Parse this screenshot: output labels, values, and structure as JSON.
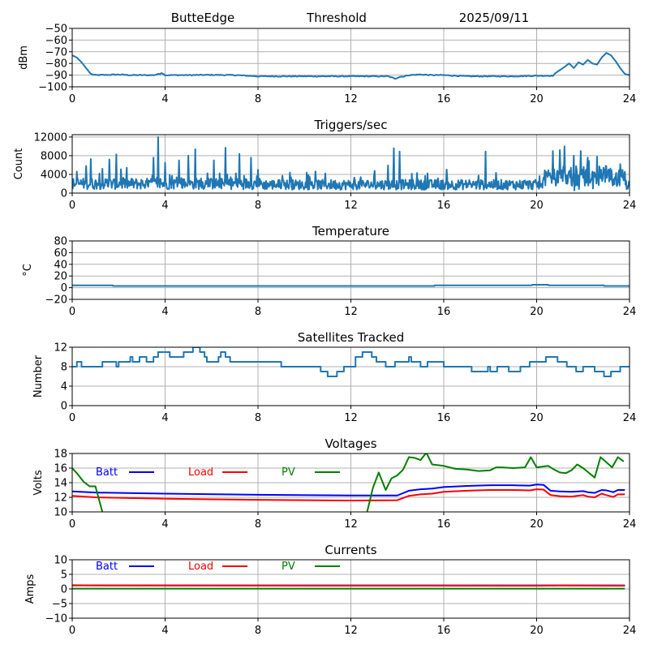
{
  "header": {
    "station": "ButteEdge",
    "label": "Threshold",
    "date": "2025/09/11"
  },
  "colors": {
    "series_default": "#1f77b4",
    "batt": "#0000ff",
    "load": "#ff0000",
    "pv": "#008000",
    "grid": "#b0b0b0"
  },
  "chart_data": [
    {
      "id": "threshold",
      "type": "line",
      "title": "",
      "xlabel": "",
      "ylabel": "dBm",
      "xlim": [
        0,
        24
      ],
      "ylim": [
        -100,
        -50
      ],
      "xticks": [
        0,
        4,
        8,
        12,
        16,
        20,
        24
      ],
      "yticks": [
        -50,
        -60,
        -70,
        -80,
        -90,
        -100
      ],
      "ytick_labels": [
        "−50",
        "−60",
        "−70",
        "−80",
        "−90",
        "−100"
      ],
      "grid": true,
      "series": [
        {
          "name": "threshold",
          "color": "#1f77b4",
          "x": [
            0,
            0.2,
            0.4,
            0.6,
            0.8,
            1.0,
            1.5,
            2.0,
            2.5,
            3.0,
            3.5,
            3.75,
            3.85,
            4.0,
            5,
            6,
            7,
            7.5,
            8,
            9,
            10,
            11,
            12,
            13,
            13.6,
            13.9,
            14.1,
            14.3,
            14.5,
            15,
            15.5,
            16,
            16.5,
            17,
            18,
            19,
            20,
            20.7,
            20.9,
            21.2,
            21.4,
            21.6,
            21.8,
            22.0,
            22.2,
            22.4,
            22.6,
            22.8,
            23.0,
            23.2,
            23.4,
            23.6,
            23.8,
            24
          ],
          "y": [
            -73,
            -75,
            -79,
            -84,
            -89,
            -90,
            -89.8,
            -89.5,
            -90,
            -90,
            -90,
            -89,
            -88,
            -90,
            -90,
            -89.8,
            -90,
            -90.5,
            -91,
            -91,
            -91,
            -91,
            -91,
            -91,
            -91,
            -93,
            -91.5,
            -91,
            -90,
            -89.5,
            -90,
            -90,
            -90.5,
            -91,
            -91,
            -91,
            -90.5,
            -90.5,
            -87,
            -83,
            -80,
            -84,
            -79,
            -81,
            -77,
            -80,
            -81,
            -75,
            -71,
            -73,
            -78,
            -84,
            -89,
            -90
          ]
        }
      ]
    },
    {
      "id": "triggers",
      "type": "line",
      "title": "Triggers/sec",
      "xlabel": "",
      "ylabel": "Count",
      "xlim": [
        0,
        24
      ],
      "ylim": [
        0,
        12500
      ],
      "xticks": [
        0,
        4,
        8,
        12,
        16,
        20,
        24
      ],
      "yticks": [
        0,
        4000,
        8000,
        12000
      ],
      "ytick_labels": [
        "0",
        "4000",
        "8000",
        "12000"
      ],
      "grid": true,
      "series": [
        {
          "name": "triggers",
          "color": "#1f77b4",
          "peaks": [
            [
              0.2,
              4600
            ],
            [
              0.6,
              5800
            ],
            [
              0.8,
              7300
            ],
            [
              1.3,
              5200
            ],
            [
              1.6,
              7200
            ],
            [
              1.9,
              8300
            ],
            [
              2.1,
              5100
            ],
            [
              3.5,
              7600
            ],
            [
              3.7,
              12000
            ],
            [
              4.0,
              6500
            ],
            [
              4.6,
              7000
            ],
            [
              5.0,
              8000
            ],
            [
              5.3,
              9400
            ],
            [
              6.1,
              7000
            ],
            [
              6.6,
              9700
            ],
            [
              7.2,
              8400
            ],
            [
              7.7,
              7600
            ],
            [
              8.0,
              5000
            ],
            [
              10.9,
              4200
            ],
            [
              13.0,
              3800
            ],
            [
              13.6,
              5900
            ],
            [
              13.85,
              9600
            ],
            [
              14.1,
              8900
            ],
            [
              15.3,
              4200
            ],
            [
              17.8,
              8900
            ],
            [
              20.7,
              9000
            ],
            [
              21.0,
              9200
            ],
            [
              21.2,
              10000
            ],
            [
              21.6,
              8000
            ],
            [
              21.9,
              9000
            ],
            [
              22.2,
              7600
            ],
            [
              22.6,
              7800
            ],
            [
              23.0,
              5800
            ],
            [
              23.6,
              6200
            ]
          ],
          "baseline_mean": 1800
        }
      ]
    },
    {
      "id": "temperature",
      "type": "line",
      "title": "Temperature",
      "xlabel": "",
      "ylabel": "°C",
      "xlim": [
        0,
        24
      ],
      "ylim": [
        -20,
        80
      ],
      "xticks": [
        0,
        4,
        8,
        12,
        16,
        20,
        24
      ],
      "yticks": [
        80,
        60,
        40,
        20,
        0,
        -20
      ],
      "ytick_labels": [
        "80",
        "60",
        "40",
        "20",
        "0",
        "−20"
      ],
      "grid": true,
      "series": [
        {
          "name": "temperature",
          "color": "#1f77b4",
          "x": [
            0,
            1.75,
            1.76,
            15.6,
            15.61,
            19.8,
            19.81,
            20.5,
            20.51,
            22.9,
            22.91,
            24
          ],
          "y": [
            4,
            4,
            3,
            3,
            4,
            4,
            5,
            5,
            4,
            4,
            3,
            3
          ]
        }
      ]
    },
    {
      "id": "satellites",
      "type": "line",
      "title": "Satellites Tracked",
      "xlabel": "",
      "ylabel": "Number",
      "xlim": [
        0,
        24
      ],
      "ylim": [
        0,
        12
      ],
      "xticks": [
        0,
        4,
        8,
        12,
        16,
        20,
        24
      ],
      "yticks": [
        0,
        4,
        8,
        12
      ],
      "ytick_labels": [
        "0",
        "4",
        "8",
        "12"
      ],
      "grid": true,
      "series": [
        {
          "name": "satellites",
          "color": "#1f77b4",
          "step": true,
          "x": [
            0,
            0.2,
            0.4,
            1.3,
            1.9,
            2.0,
            2.5,
            2.6,
            2.9,
            3.2,
            3.5,
            3.7,
            4.2,
            4.8,
            5.2,
            5.5,
            5.7,
            5.8,
            6.3,
            6.4,
            6.6,
            6.8,
            6.9,
            8.0,
            9.0,
            9.3,
            10.0,
            10.7,
            11.0,
            11.4,
            11.7,
            12.2,
            12.5,
            12.9,
            13.1,
            13.5,
            13.9,
            14.2,
            14.5,
            14.6,
            15.0,
            15.3,
            16.0,
            16.8,
            17.2,
            17.9,
            18.0,
            18.3,
            18.8,
            19.3,
            19.7,
            20.4,
            20.9,
            21.3,
            21.7,
            22.0,
            22.5,
            22.9,
            23.2,
            23.6,
            24
          ],
          "y": [
            8,
            9,
            8,
            9,
            8,
            9,
            10,
            9,
            10,
            9,
            10,
            11,
            10,
            11,
            12,
            11,
            10,
            9,
            10,
            11,
            10,
            9,
            9,
            9,
            8,
            8,
            8,
            7,
            6,
            7,
            8,
            10,
            11,
            10,
            9,
            8,
            9,
            9,
            10,
            9,
            8,
            9,
            8,
            8,
            7,
            8,
            7,
            8,
            7,
            8,
            9,
            10,
            9,
            8,
            7,
            8,
            7,
            6,
            7,
            8,
            8
          ]
        }
      ]
    },
    {
      "id": "voltages",
      "type": "line",
      "title": "Voltages",
      "xlabel": "",
      "ylabel": "Volts",
      "xlim": [
        0,
        24
      ],
      "ylim": [
        10,
        18
      ],
      "xticks": [
        0,
        4,
        8,
        12,
        16,
        20,
        24
      ],
      "yticks": [
        10,
        12,
        14,
        16,
        18
      ],
      "ytick_labels": [
        "10",
        "12",
        "14",
        "16",
        "18"
      ],
      "grid": true,
      "legend": {
        "placement": "top-left-inline",
        "entries": [
          {
            "label": "Batt",
            "color": "#0000ff"
          },
          {
            "label": "Load",
            "color": "#ff0000"
          },
          {
            "label": "PV",
            "color": "#008000"
          }
        ]
      },
      "series": [
        {
          "name": "Batt",
          "color": "#0000ff",
          "x": [
            0,
            1,
            4,
            8,
            12,
            14.0,
            14.5,
            15.0,
            15.5,
            16,
            17,
            18,
            19,
            19.7,
            20,
            20.3,
            20.6,
            21,
            21.5,
            22,
            22.2,
            22.5,
            22.8,
            23,
            23.3,
            23.5,
            23.8
          ],
          "y": [
            12.8,
            12.65,
            12.5,
            12.35,
            12.25,
            12.25,
            12.9,
            13.1,
            13.2,
            13.4,
            13.55,
            13.65,
            13.65,
            13.6,
            13.75,
            13.7,
            12.9,
            12.8,
            12.75,
            12.85,
            12.7,
            12.6,
            13.0,
            12.95,
            12.7,
            13.0,
            13.0
          ]
        },
        {
          "name": "Load",
          "color": "#ff0000",
          "x": [
            0,
            1,
            4,
            8,
            12,
            14.0,
            14.5,
            15.0,
            15.5,
            16,
            17,
            18,
            19,
            19.7,
            20,
            20.3,
            20.6,
            21,
            21.5,
            22,
            22.2,
            22.5,
            22.8,
            23,
            23.3,
            23.5,
            23.8
          ],
          "y": [
            12.2,
            12.0,
            11.8,
            11.65,
            11.55,
            11.6,
            12.2,
            12.4,
            12.5,
            12.75,
            12.9,
            13.0,
            13.0,
            12.95,
            13.1,
            13.05,
            12.3,
            12.15,
            12.1,
            12.3,
            12.1,
            12.0,
            12.5,
            12.3,
            12.05,
            12.4,
            12.4
          ]
        },
        {
          "name": "PV",
          "color": "#008000",
          "x": [
            0,
            0.2,
            0.5,
            0.75,
            1.0,
            1.3,
            1.6,
            12.5,
            12.7,
            12.95,
            13.2,
            13.5,
            13.75,
            14.0,
            14.25,
            14.5,
            14.75,
            15.0,
            15.25,
            15.5,
            16,
            16.5,
            17,
            17.5,
            18,
            18.25,
            18.5,
            19,
            19.5,
            19.75,
            20,
            20.5,
            20.75,
            21,
            21.25,
            21.5,
            21.75,
            22,
            22.5,
            22.75,
            23.0,
            23.25,
            23.5,
            23.75
          ],
          "y": [
            16,
            15.3,
            14.1,
            13.5,
            13.5,
            10.0,
            7.0,
            7.0,
            10.0,
            13.3,
            15.4,
            13.0,
            14.6,
            15.0,
            15.8,
            17.5,
            17.4,
            17.1,
            18.1,
            16.5,
            16.3,
            15.9,
            15.8,
            15.6,
            15.7,
            16.1,
            16.1,
            16.0,
            16.1,
            17.5,
            16.1,
            16.3,
            15.8,
            15.4,
            15.3,
            15.7,
            16.5,
            16.0,
            14.7,
            17.5,
            16.8,
            16.1,
            17.5,
            16.9
          ]
        }
      ]
    },
    {
      "id": "currents",
      "type": "line",
      "title": "Currents",
      "xlabel": "",
      "ylabel": "Amps",
      "xlim": [
        0,
        24
      ],
      "ylim": [
        -10,
        10
      ],
      "xticks": [
        0,
        4,
        8,
        12,
        16,
        20,
        24
      ],
      "yticks": [
        10,
        5,
        0,
        -5,
        -10
      ],
      "ytick_labels": [
        "10",
        "5",
        "0",
        "−5",
        "−10"
      ],
      "grid": true,
      "legend": {
        "placement": "top-left-inline",
        "entries": [
          {
            "label": "Batt",
            "color": "#0000ff"
          },
          {
            "label": "Load",
            "color": "#ff0000"
          },
          {
            "label": "PV",
            "color": "#008000"
          }
        ]
      },
      "series": [
        {
          "name": "Batt",
          "color": "#0000ff",
          "x": [
            0,
            23.8
          ],
          "y": [
            1.2,
            1.2
          ]
        },
        {
          "name": "Load",
          "color": "#ff0000",
          "x": [
            0,
            1,
            12,
            20,
            21,
            23.8
          ],
          "y": [
            1.3,
            1.2,
            1.15,
            1.1,
            1.2,
            1.1
          ]
        },
        {
          "name": "PV",
          "color": "#008000",
          "x": [
            0,
            23.8
          ],
          "y": [
            0.1,
            0.1
          ]
        }
      ]
    }
  ]
}
